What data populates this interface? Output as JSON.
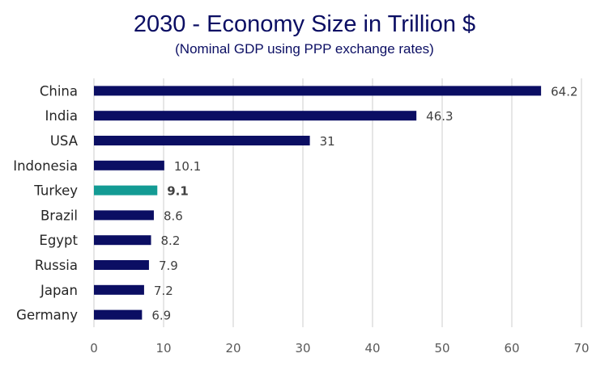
{
  "chart_data": {
    "type": "bar",
    "orientation": "horizontal",
    "title": "2030 - Economy Size in Trillion $",
    "subtitle": "(Nominal GDP using PPP exchange rates)",
    "xlabel": "",
    "ylabel": "",
    "xlim": [
      0,
      70
    ],
    "x_ticks": [
      0,
      10,
      20,
      30,
      40,
      50,
      60,
      70
    ],
    "grid": true,
    "categories": [
      "China",
      "India",
      "USA",
      "Indonesia",
      "Turkey",
      "Brazil",
      "Egypt",
      "Russia",
      "Japan",
      "Germany"
    ],
    "values": [
      64.2,
      46.3,
      31,
      10.1,
      9.1,
      8.6,
      8.2,
      7.9,
      7.2,
      6.9
    ],
    "value_labels": [
      "64.2",
      "46.3",
      "31",
      "10.1",
      "9.1",
      "8.6",
      "8.2",
      "7.9",
      "7.2",
      "6.9"
    ],
    "highlight": "Turkey",
    "colors": {
      "bar": "#0b0e63",
      "highlight": "#139b94",
      "title": "#0b0e63"
    }
  }
}
